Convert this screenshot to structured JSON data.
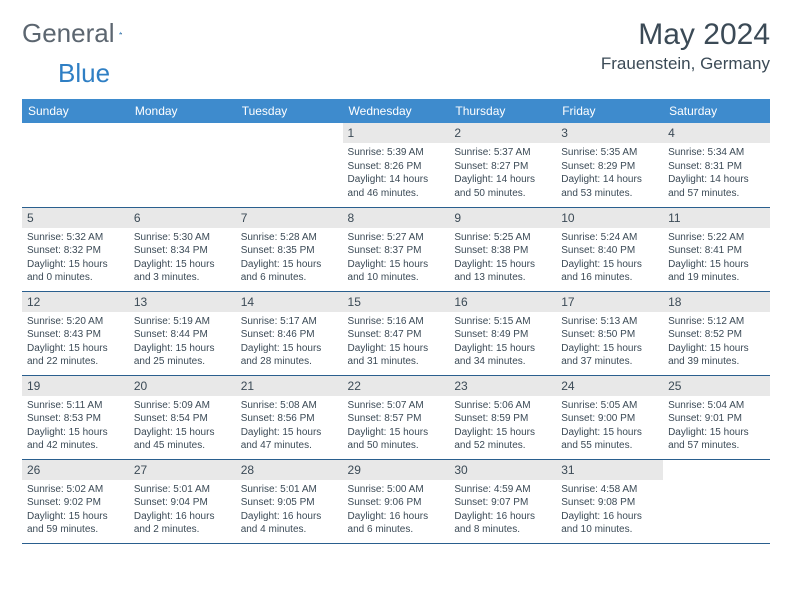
{
  "logo": {
    "text1": "General",
    "text2": "Blue",
    "color1": "#5c6670",
    "color2": "#2f7fc4"
  },
  "title": "May 2024",
  "location": "Frauenstein, Germany",
  "header_bg": "#3e8bcd",
  "daynum_bg": "#e8e8e8",
  "border_color": "#2a5f8e",
  "text_color": "#3b4a56",
  "day_headers": [
    "Sunday",
    "Monday",
    "Tuesday",
    "Wednesday",
    "Thursday",
    "Friday",
    "Saturday"
  ],
  "weeks": [
    [
      null,
      null,
      null,
      {
        "n": "1",
        "sr": "5:39 AM",
        "ss": "8:26 PM",
        "dl": "14 hours and 46 minutes."
      },
      {
        "n": "2",
        "sr": "5:37 AM",
        "ss": "8:27 PM",
        "dl": "14 hours and 50 minutes."
      },
      {
        "n": "3",
        "sr": "5:35 AM",
        "ss": "8:29 PM",
        "dl": "14 hours and 53 minutes."
      },
      {
        "n": "4",
        "sr": "5:34 AM",
        "ss": "8:31 PM",
        "dl": "14 hours and 57 minutes."
      }
    ],
    [
      {
        "n": "5",
        "sr": "5:32 AM",
        "ss": "8:32 PM",
        "dl": "15 hours and 0 minutes."
      },
      {
        "n": "6",
        "sr": "5:30 AM",
        "ss": "8:34 PM",
        "dl": "15 hours and 3 minutes."
      },
      {
        "n": "7",
        "sr": "5:28 AM",
        "ss": "8:35 PM",
        "dl": "15 hours and 6 minutes."
      },
      {
        "n": "8",
        "sr": "5:27 AM",
        "ss": "8:37 PM",
        "dl": "15 hours and 10 minutes."
      },
      {
        "n": "9",
        "sr": "5:25 AM",
        "ss": "8:38 PM",
        "dl": "15 hours and 13 minutes."
      },
      {
        "n": "10",
        "sr": "5:24 AM",
        "ss": "8:40 PM",
        "dl": "15 hours and 16 minutes."
      },
      {
        "n": "11",
        "sr": "5:22 AM",
        "ss": "8:41 PM",
        "dl": "15 hours and 19 minutes."
      }
    ],
    [
      {
        "n": "12",
        "sr": "5:20 AM",
        "ss": "8:43 PM",
        "dl": "15 hours and 22 minutes."
      },
      {
        "n": "13",
        "sr": "5:19 AM",
        "ss": "8:44 PM",
        "dl": "15 hours and 25 minutes."
      },
      {
        "n": "14",
        "sr": "5:17 AM",
        "ss": "8:46 PM",
        "dl": "15 hours and 28 minutes."
      },
      {
        "n": "15",
        "sr": "5:16 AM",
        "ss": "8:47 PM",
        "dl": "15 hours and 31 minutes."
      },
      {
        "n": "16",
        "sr": "5:15 AM",
        "ss": "8:49 PM",
        "dl": "15 hours and 34 minutes."
      },
      {
        "n": "17",
        "sr": "5:13 AM",
        "ss": "8:50 PM",
        "dl": "15 hours and 37 minutes."
      },
      {
        "n": "18",
        "sr": "5:12 AM",
        "ss": "8:52 PM",
        "dl": "15 hours and 39 minutes."
      }
    ],
    [
      {
        "n": "19",
        "sr": "5:11 AM",
        "ss": "8:53 PM",
        "dl": "15 hours and 42 minutes."
      },
      {
        "n": "20",
        "sr": "5:09 AM",
        "ss": "8:54 PM",
        "dl": "15 hours and 45 minutes."
      },
      {
        "n": "21",
        "sr": "5:08 AM",
        "ss": "8:56 PM",
        "dl": "15 hours and 47 minutes."
      },
      {
        "n": "22",
        "sr": "5:07 AM",
        "ss": "8:57 PM",
        "dl": "15 hours and 50 minutes."
      },
      {
        "n": "23",
        "sr": "5:06 AM",
        "ss": "8:59 PM",
        "dl": "15 hours and 52 minutes."
      },
      {
        "n": "24",
        "sr": "5:05 AM",
        "ss": "9:00 PM",
        "dl": "15 hours and 55 minutes."
      },
      {
        "n": "25",
        "sr": "5:04 AM",
        "ss": "9:01 PM",
        "dl": "15 hours and 57 minutes."
      }
    ],
    [
      {
        "n": "26",
        "sr": "5:02 AM",
        "ss": "9:02 PM",
        "dl": "15 hours and 59 minutes."
      },
      {
        "n": "27",
        "sr": "5:01 AM",
        "ss": "9:04 PM",
        "dl": "16 hours and 2 minutes."
      },
      {
        "n": "28",
        "sr": "5:01 AM",
        "ss": "9:05 PM",
        "dl": "16 hours and 4 minutes."
      },
      {
        "n": "29",
        "sr": "5:00 AM",
        "ss": "9:06 PM",
        "dl": "16 hours and 6 minutes."
      },
      {
        "n": "30",
        "sr": "4:59 AM",
        "ss": "9:07 PM",
        "dl": "16 hours and 8 minutes."
      },
      {
        "n": "31",
        "sr": "4:58 AM",
        "ss": "9:08 PM",
        "dl": "16 hours and 10 minutes."
      },
      null
    ]
  ]
}
